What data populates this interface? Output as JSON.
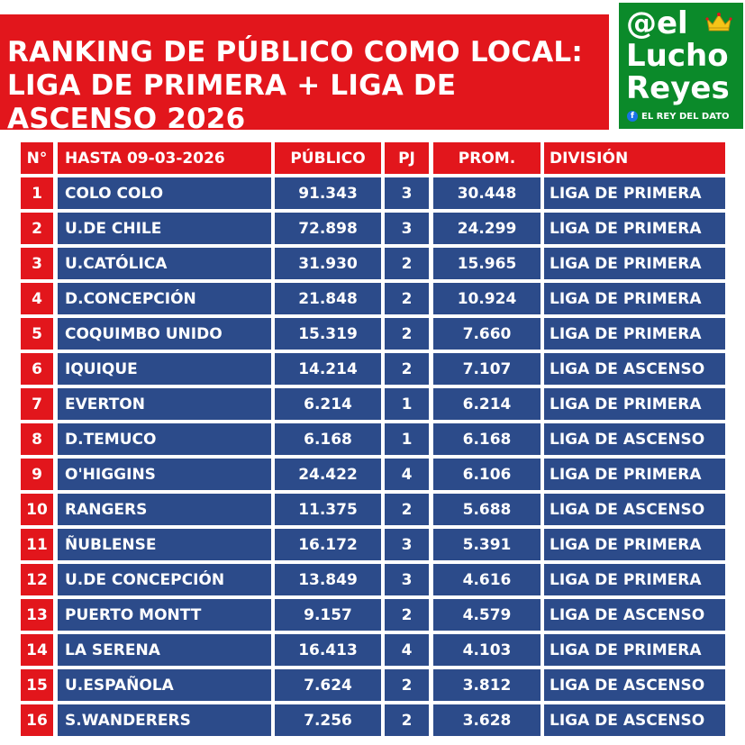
{
  "title": "RANKING DE PÚBLICO COMO LOCAL: LIGA DE PRIMERA + LIGA DE ASCENSO 2026",
  "logo": {
    "line1": "@el",
    "line2": "Lucho",
    "line3": "Reyes",
    "tagline": "EL REY DEL DATO",
    "icons": [
      "crown-icon",
      "facebook-icon"
    ]
  },
  "colors": {
    "red": "#e2161c",
    "navy": "#2c4b8a",
    "green": "#0b8a2a"
  },
  "table": {
    "headers": {
      "n": "N°",
      "team": "HASTA 09-03-2026",
      "publico": "PÚBLICO",
      "pj": "PJ",
      "prom": "PROM.",
      "division": "DIVISIÓN"
    },
    "rows": [
      {
        "n": "1",
        "team": "COLO COLO",
        "publico": "91.343",
        "pj": "3",
        "prom": "30.448",
        "division": "LIGA DE PRIMERA"
      },
      {
        "n": "2",
        "team": "U.DE CHILE",
        "publico": "72.898",
        "pj": "3",
        "prom": "24.299",
        "division": "LIGA DE PRIMERA"
      },
      {
        "n": "3",
        "team": "U.CATÓLICA",
        "publico": "31.930",
        "pj": "2",
        "prom": "15.965",
        "division": "LIGA DE PRIMERA"
      },
      {
        "n": "4",
        "team": "D.CONCEPCIÓN",
        "publico": "21.848",
        "pj": "2",
        "prom": "10.924",
        "division": "LIGA DE PRIMERA"
      },
      {
        "n": "5",
        "team": "COQUIMBO UNIDO",
        "publico": "15.319",
        "pj": "2",
        "prom": "7.660",
        "division": "LIGA DE PRIMERA"
      },
      {
        "n": "6",
        "team": "IQUIQUE",
        "publico": "14.214",
        "pj": "2",
        "prom": "7.107",
        "division": "LIGA DE ASCENSO"
      },
      {
        "n": "7",
        "team": "EVERTON",
        "publico": "6.214",
        "pj": "1",
        "prom": "6.214",
        "division": "LIGA DE PRIMERA"
      },
      {
        "n": "8",
        "team": "D.TEMUCO",
        "publico": "6.168",
        "pj": "1",
        "prom": "6.168",
        "division": "LIGA DE ASCENSO"
      },
      {
        "n": "9",
        "team": "O'HIGGINS",
        "publico": "24.422",
        "pj": "4",
        "prom": "6.106",
        "division": "LIGA DE PRIMERA"
      },
      {
        "n": "10",
        "team": "RANGERS",
        "publico": "11.375",
        "pj": "2",
        "prom": "5.688",
        "division": "LIGA DE ASCENSO"
      },
      {
        "n": "11",
        "team": "ÑUBLENSE",
        "publico": "16.172",
        "pj": "3",
        "prom": "5.391",
        "division": "LIGA DE PRIMERA"
      },
      {
        "n": "12",
        "team": "U.DE CONCEPCIÓN",
        "publico": "13.849",
        "pj": "3",
        "prom": "4.616",
        "division": "LIGA DE PRIMERA"
      },
      {
        "n": "13",
        "team": "PUERTO MONTT",
        "publico": "9.157",
        "pj": "2",
        "prom": "4.579",
        "division": "LIGA DE ASCENSO"
      },
      {
        "n": "14",
        "team": "LA SERENA",
        "publico": "16.413",
        "pj": "4",
        "prom": "4.103",
        "division": "LIGA DE PRIMERA"
      },
      {
        "n": "15",
        "team": "U.ESPAÑOLA",
        "publico": "7.624",
        "pj": "2",
        "prom": "3.812",
        "division": "LIGA DE ASCENSO"
      },
      {
        "n": "16",
        "team": "S.WANDERERS",
        "publico": "7.256",
        "pj": "2",
        "prom": "3.628",
        "division": "LIGA DE ASCENSO"
      }
    ]
  }
}
